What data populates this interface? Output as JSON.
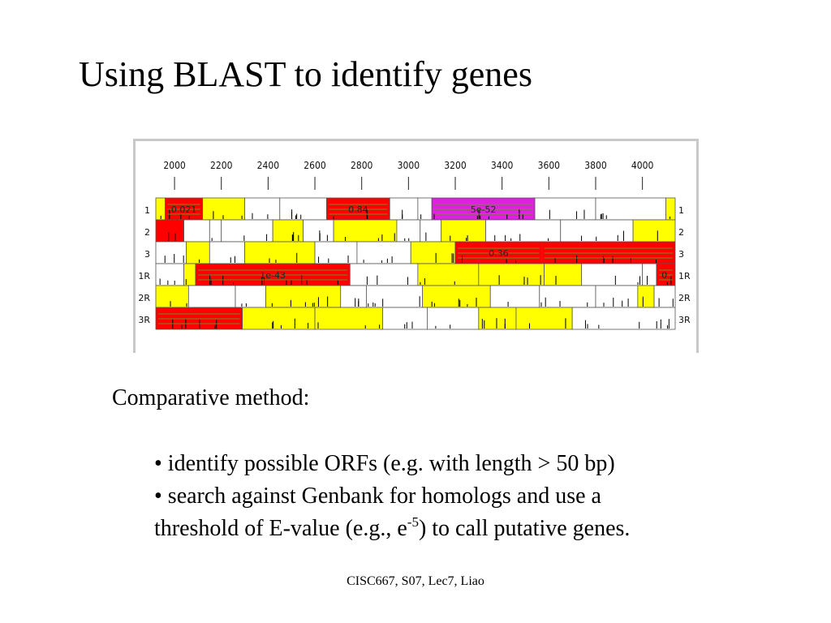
{
  "slide": {
    "title": "Using BLAST to identify genes",
    "subheading": "Comparative method:",
    "bullet1": "• identify possible ORFs (e.g. with length > 50 bp)",
    "bullet2_line1": "• search against Genbank for homologs and use a",
    "bullet2_line2_pre": "threshold of E-value (e.g., e",
    "bullet2_sup": "-5",
    "bullet2_line2_post": ") to call putative genes.",
    "footer": "CISC667, S07, Lec7, Liao"
  },
  "figure": {
    "x_axis_ticks": [
      "2000",
      "2200",
      "2400",
      "2600",
      "2800",
      "3000",
      "3200",
      "3400",
      "3600",
      "3800",
      "4000"
    ],
    "x_range": [
      1920,
      4140
    ],
    "colors": {
      "red": "#ff0000",
      "yellow": "#ffff00",
      "magenta": "#e020e0",
      "white": "#ffffff"
    },
    "frames": [
      {
        "label": "1",
        "segments": [
          [
            1920,
            1960,
            "yellow"
          ],
          [
            1960,
            2120,
            "red",
            "0.021"
          ],
          [
            2120,
            2300,
            "yellow"
          ],
          [
            2300,
            2450,
            "white"
          ],
          [
            2450,
            2650,
            "white"
          ],
          [
            2650,
            2920,
            "red",
            "0.84"
          ],
          [
            2920,
            3040,
            "white"
          ],
          [
            3040,
            3100,
            "white"
          ],
          [
            3100,
            3540,
            "magenta",
            "5e-52"
          ],
          [
            3540,
            3800,
            "white"
          ],
          [
            3800,
            4100,
            "white"
          ],
          [
            4100,
            4140,
            "yellow"
          ]
        ]
      },
      {
        "label": "2",
        "segments": [
          [
            1920,
            2040,
            "red"
          ],
          [
            2040,
            2150,
            "white"
          ],
          [
            2150,
            2200,
            "white"
          ],
          [
            2200,
            2420,
            "white"
          ],
          [
            2420,
            2550,
            "yellow"
          ],
          [
            2550,
            2680,
            "white"
          ],
          [
            2680,
            2950,
            "yellow"
          ],
          [
            2950,
            3050,
            "white"
          ],
          [
            3050,
            3140,
            "white"
          ],
          [
            3140,
            3330,
            "yellow"
          ],
          [
            3330,
            3650,
            "white"
          ],
          [
            3650,
            3960,
            "white"
          ],
          [
            3960,
            4140,
            "yellow"
          ]
        ]
      },
      {
        "label": "3",
        "segments": [
          [
            1920,
            2050,
            "white"
          ],
          [
            2050,
            2150,
            "yellow"
          ],
          [
            2150,
            2300,
            "white"
          ],
          [
            2300,
            2600,
            "yellow"
          ],
          [
            2600,
            2780,
            "white"
          ],
          [
            2780,
            3010,
            "white"
          ],
          [
            3010,
            3200,
            "yellow"
          ],
          [
            3200,
            3570,
            "red",
            "0.36"
          ],
          [
            3570,
            4140,
            "red"
          ]
        ]
      },
      {
        "label": "1R",
        "segments": [
          [
            1920,
            2040,
            "white"
          ],
          [
            2040,
            2090,
            "yellow"
          ],
          [
            2090,
            2750,
            "red",
            "1e-43"
          ],
          [
            2750,
            3040,
            "white"
          ],
          [
            3040,
            3300,
            "yellow"
          ],
          [
            3300,
            3580,
            "yellow"
          ],
          [
            3580,
            3740,
            "yellow"
          ],
          [
            3740,
            4000,
            "white"
          ],
          [
            4000,
            4060,
            "white"
          ],
          [
            4060,
            4140,
            "red",
            "0."
          ]
        ]
      },
      {
        "label": "2R",
        "segments": [
          [
            1920,
            2060,
            "yellow"
          ],
          [
            2060,
            2260,
            "white"
          ],
          [
            2260,
            2390,
            "white"
          ],
          [
            2390,
            2710,
            "yellow"
          ],
          [
            2710,
            2820,
            "white"
          ],
          [
            2820,
            3060,
            "white"
          ],
          [
            3060,
            3350,
            "yellow"
          ],
          [
            3350,
            3560,
            "white"
          ],
          [
            3560,
            3800,
            "white"
          ],
          [
            3800,
            3980,
            "white"
          ],
          [
            3980,
            4050,
            "yellow"
          ],
          [
            4050,
            4140,
            "white"
          ]
        ]
      },
      {
        "label": "3R",
        "segments": [
          [
            1920,
            2290,
            "red"
          ],
          [
            2290,
            2600,
            "yellow"
          ],
          [
            2600,
            2890,
            "yellow"
          ],
          [
            2890,
            3080,
            "white"
          ],
          [
            3080,
            3300,
            "white"
          ],
          [
            3300,
            3460,
            "yellow"
          ],
          [
            3460,
            3700,
            "yellow"
          ],
          [
            3700,
            4140,
            "white"
          ]
        ]
      }
    ]
  }
}
